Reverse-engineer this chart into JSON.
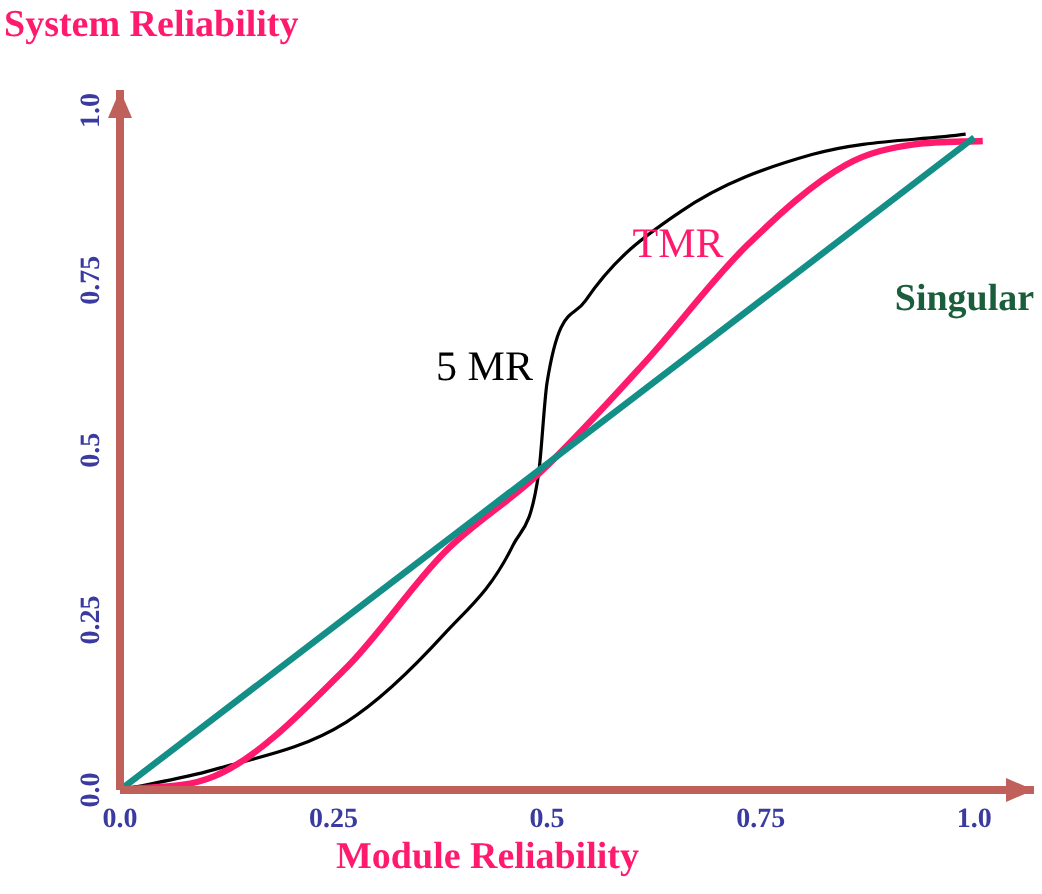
{
  "chart_data": {
    "type": "line",
    "xlabel": "Module Reliability",
    "ylabel": "System Reliability",
    "xlim": [
      0,
      1.07
    ],
    "ylim": [
      0,
      1.03
    ],
    "xticks": [
      {
        "value": 0,
        "label": "0.0"
      },
      0.25,
      0.5,
      0.75,
      {
        "value": 1,
        "label": "1.0"
      }
    ],
    "yticks": [
      {
        "value": 0,
        "label": "0.0"
      },
      0.25,
      0.5,
      0.75,
      {
        "value": 1,
        "label": "1.0"
      }
    ],
    "grid": false,
    "legend": false,
    "marker": "none",
    "line_style": "solid",
    "series": [
      {
        "name": "Singular",
        "color": "#148f87",
        "x": [
          0,
          1
        ],
        "values": [
          0,
          0.96
        ]
      },
      {
        "name": "TMR",
        "color": "#ff1a6e",
        "x": [
          0,
          0.11,
          0.265,
          0.38,
          0.49,
          0.615,
          0.733,
          0.85,
          0.93,
          1.01
        ],
        "values": [
          0,
          0.02,
          0.18,
          0.35,
          0.465,
          0.63,
          0.8,
          0.92,
          0.95,
          0.955
        ]
      },
      {
        "name": "5 MR",
        "color": "#000000",
        "x": [
          0,
          0.11,
          0.265,
          0.38,
          0.46,
          0.49,
          0.5,
          0.545,
          0.655,
          0.81,
          0.99
        ],
        "values": [
          0,
          0.03,
          0.1,
          0.23,
          0.36,
          0.465,
          0.6,
          0.72,
          0.85,
          0.935,
          0.965
        ]
      }
    ]
  }
}
